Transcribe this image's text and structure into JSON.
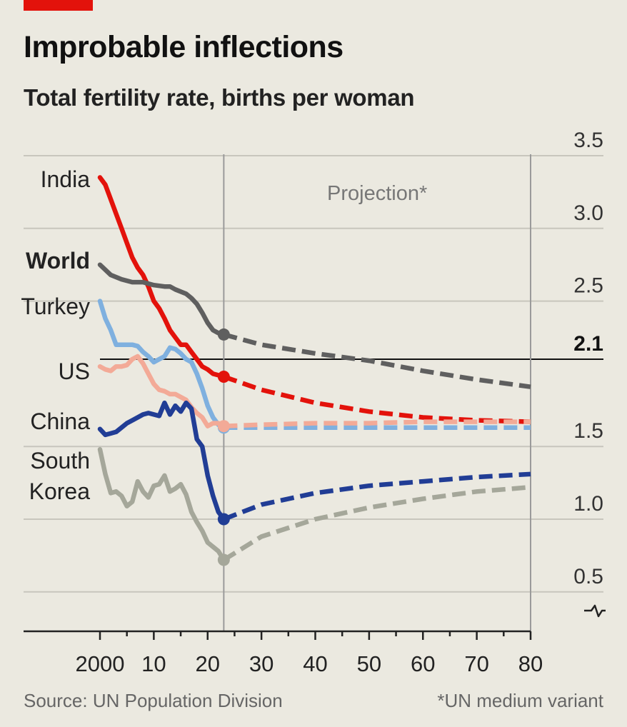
{
  "colors": {
    "background": "#ebe9e0",
    "accent": "#e3120b",
    "grid": "#c8c6bd",
    "axis": "#222222",
    "India": "#e3120b",
    "World": "#5f5f5f",
    "Turkey": "#7fb0df",
    "US": "#f3aa97",
    "China": "#213d95",
    "South Korea": "#a5a79a"
  },
  "header": {
    "title": "Improbable inflections",
    "subtitle": "Total fertility rate, births per woman"
  },
  "footer": {
    "source": "Source: UN Population Division",
    "note": "*UN medium variant"
  },
  "chart_data": {
    "type": "line",
    "title": "Improbable inflections",
    "subtitle": "Total fertility rate, births per woman",
    "xlabel": "",
    "ylabel": "",
    "xlim": [
      2000,
      2080
    ],
    "ylim": [
      0.3,
      3.5
    ],
    "y_axis_break": true,
    "y_ticks": [
      0.5,
      1.0,
      1.5,
      2.5,
      3.0,
      3.5
    ],
    "y_tick_labels": [
      "0.5",
      "1.0",
      "1.5",
      "2.5",
      "3.0",
      "3.5"
    ],
    "reference_line": {
      "value": 2.1,
      "label": "2.1"
    },
    "x_ticks": [
      2000,
      2010,
      2020,
      2030,
      2040,
      2050,
      2060,
      2070,
      2080
    ],
    "x_tick_labels": [
      "2000",
      "10",
      "20",
      "30",
      "40",
      "50",
      "60",
      "70",
      "80"
    ],
    "projection_start": 2023,
    "projection_label": "Projection*",
    "series": [
      {
        "name": "India",
        "label": "India",
        "bold": false,
        "actual": [
          [
            2000,
            3.35
          ],
          [
            2001,
            3.3
          ],
          [
            2002,
            3.2
          ],
          [
            2003,
            3.1
          ],
          [
            2004,
            3.0
          ],
          [
            2005,
            2.9
          ],
          [
            2006,
            2.8
          ],
          [
            2007,
            2.73
          ],
          [
            2008,
            2.68
          ],
          [
            2009,
            2.6
          ],
          [
            2010,
            2.5
          ],
          [
            2011,
            2.45
          ],
          [
            2012,
            2.38
          ],
          [
            2013,
            2.3
          ],
          [
            2014,
            2.25
          ],
          [
            2015,
            2.2
          ],
          [
            2016,
            2.2
          ],
          [
            2017,
            2.15
          ],
          [
            2018,
            2.1
          ],
          [
            2019,
            2.05
          ],
          [
            2020,
            2.03
          ],
          [
            2021,
            2.0
          ],
          [
            2022,
            1.99
          ],
          [
            2023,
            1.98
          ]
        ],
        "projection": [
          [
            2023,
            1.98
          ],
          [
            2030,
            1.89
          ],
          [
            2040,
            1.8
          ],
          [
            2050,
            1.74
          ],
          [
            2060,
            1.7
          ],
          [
            2070,
            1.68
          ],
          [
            2080,
            1.67
          ]
        ]
      },
      {
        "name": "World",
        "label": "World",
        "bold": true,
        "actual": [
          [
            2000,
            2.75
          ],
          [
            2002,
            2.68
          ],
          [
            2004,
            2.65
          ],
          [
            2006,
            2.63
          ],
          [
            2008,
            2.63
          ],
          [
            2010,
            2.61
          ],
          [
            2012,
            2.6
          ],
          [
            2013,
            2.6
          ],
          [
            2014,
            2.58
          ],
          [
            2016,
            2.55
          ],
          [
            2017,
            2.52
          ],
          [
            2018,
            2.48
          ],
          [
            2019,
            2.42
          ],
          [
            2020,
            2.35
          ],
          [
            2021,
            2.3
          ],
          [
            2022,
            2.28
          ],
          [
            2023,
            2.27
          ]
        ],
        "projection": [
          [
            2023,
            2.27
          ],
          [
            2030,
            2.2
          ],
          [
            2040,
            2.14
          ],
          [
            2050,
            2.09
          ],
          [
            2060,
            2.02
          ],
          [
            2070,
            1.96
          ],
          [
            2080,
            1.91
          ]
        ]
      },
      {
        "name": "Turkey",
        "label": "Turkey",
        "bold": false,
        "actual": [
          [
            2000,
            2.5
          ],
          [
            2001,
            2.38
          ],
          [
            2002,
            2.3
          ],
          [
            2003,
            2.2
          ],
          [
            2004,
            2.2
          ],
          [
            2005,
            2.2
          ],
          [
            2006,
            2.2
          ],
          [
            2007,
            2.19
          ],
          [
            2008,
            2.15
          ],
          [
            2009,
            2.12
          ],
          [
            2010,
            2.08
          ],
          [
            2011,
            2.1
          ],
          [
            2012,
            2.12
          ],
          [
            2013,
            2.18
          ],
          [
            2014,
            2.17
          ],
          [
            2015,
            2.14
          ],
          [
            2016,
            2.1
          ],
          [
            2017,
            2.08
          ],
          [
            2018,
            2.0
          ],
          [
            2019,
            1.9
          ],
          [
            2020,
            1.78
          ],
          [
            2021,
            1.7
          ],
          [
            2022,
            1.65
          ],
          [
            2023,
            1.63
          ]
        ],
        "projection": [
          [
            2023,
            1.63
          ],
          [
            2030,
            1.63
          ],
          [
            2040,
            1.63
          ],
          [
            2050,
            1.63
          ],
          [
            2060,
            1.63
          ],
          [
            2070,
            1.63
          ],
          [
            2080,
            1.63
          ]
        ]
      },
      {
        "name": "US",
        "label": "US",
        "bold": false,
        "actual": [
          [
            2000,
            2.05
          ],
          [
            2001,
            2.03
          ],
          [
            2002,
            2.02
          ],
          [
            2003,
            2.05
          ],
          [
            2004,
            2.05
          ],
          [
            2005,
            2.06
          ],
          [
            2006,
            2.1
          ],
          [
            2007,
            2.12
          ],
          [
            2008,
            2.07
          ],
          [
            2009,
            2.0
          ],
          [
            2010,
            1.93
          ],
          [
            2011,
            1.89
          ],
          [
            2012,
            1.88
          ],
          [
            2013,
            1.86
          ],
          [
            2014,
            1.86
          ],
          [
            2015,
            1.84
          ],
          [
            2016,
            1.82
          ],
          [
            2017,
            1.77
          ],
          [
            2018,
            1.73
          ],
          [
            2019,
            1.7
          ],
          [
            2020,
            1.64
          ],
          [
            2021,
            1.66
          ],
          [
            2022,
            1.66
          ],
          [
            2023,
            1.64
          ]
        ],
        "projection": [
          [
            2023,
            1.64
          ],
          [
            2030,
            1.65
          ],
          [
            2040,
            1.66
          ],
          [
            2050,
            1.66
          ],
          [
            2060,
            1.67
          ],
          [
            2070,
            1.67
          ],
          [
            2080,
            1.67
          ]
        ]
      },
      {
        "name": "China",
        "label": "China",
        "bold": false,
        "actual": [
          [
            2000,
            1.62
          ],
          [
            2001,
            1.58
          ],
          [
            2002,
            1.59
          ],
          [
            2003,
            1.6
          ],
          [
            2004,
            1.63
          ],
          [
            2005,
            1.66
          ],
          [
            2006,
            1.68
          ],
          [
            2007,
            1.7
          ],
          [
            2008,
            1.72
          ],
          [
            2009,
            1.73
          ],
          [
            2010,
            1.72
          ],
          [
            2011,
            1.71
          ],
          [
            2012,
            1.8
          ],
          [
            2013,
            1.72
          ],
          [
            2014,
            1.78
          ],
          [
            2015,
            1.74
          ],
          [
            2016,
            1.8
          ],
          [
            2017,
            1.76
          ],
          [
            2018,
            1.55
          ],
          [
            2019,
            1.5
          ],
          [
            2020,
            1.3
          ],
          [
            2021,
            1.16
          ],
          [
            2022,
            1.05
          ],
          [
            2023,
            1.0
          ]
        ],
        "projection": [
          [
            2023,
            1.0
          ],
          [
            2030,
            1.1
          ],
          [
            2040,
            1.18
          ],
          [
            2050,
            1.23
          ],
          [
            2060,
            1.26
          ],
          [
            2070,
            1.29
          ],
          [
            2080,
            1.31
          ]
        ]
      },
      {
        "name": "South Korea",
        "label": "South Korea",
        "bold": false,
        "actual": [
          [
            2000,
            1.48
          ],
          [
            2001,
            1.31
          ],
          [
            2002,
            1.18
          ],
          [
            2003,
            1.19
          ],
          [
            2004,
            1.16
          ],
          [
            2005,
            1.09
          ],
          [
            2006,
            1.12
          ],
          [
            2007,
            1.26
          ],
          [
            2008,
            1.19
          ],
          [
            2009,
            1.15
          ],
          [
            2010,
            1.23
          ],
          [
            2011,
            1.24
          ],
          [
            2012,
            1.3
          ],
          [
            2013,
            1.19
          ],
          [
            2014,
            1.21
          ],
          [
            2015,
            1.24
          ],
          [
            2016,
            1.17
          ],
          [
            2017,
            1.05
          ],
          [
            2018,
            0.98
          ],
          [
            2019,
            0.92
          ],
          [
            2020,
            0.84
          ],
          [
            2021,
            0.81
          ],
          [
            2022,
            0.78
          ],
          [
            2023,
            0.72
          ]
        ],
        "projection": [
          [
            2023,
            0.72
          ],
          [
            2030,
            0.88
          ],
          [
            2040,
            1.0
          ],
          [
            2050,
            1.08
          ],
          [
            2060,
            1.14
          ],
          [
            2070,
            1.19
          ],
          [
            2080,
            1.22
          ]
        ]
      }
    ]
  }
}
